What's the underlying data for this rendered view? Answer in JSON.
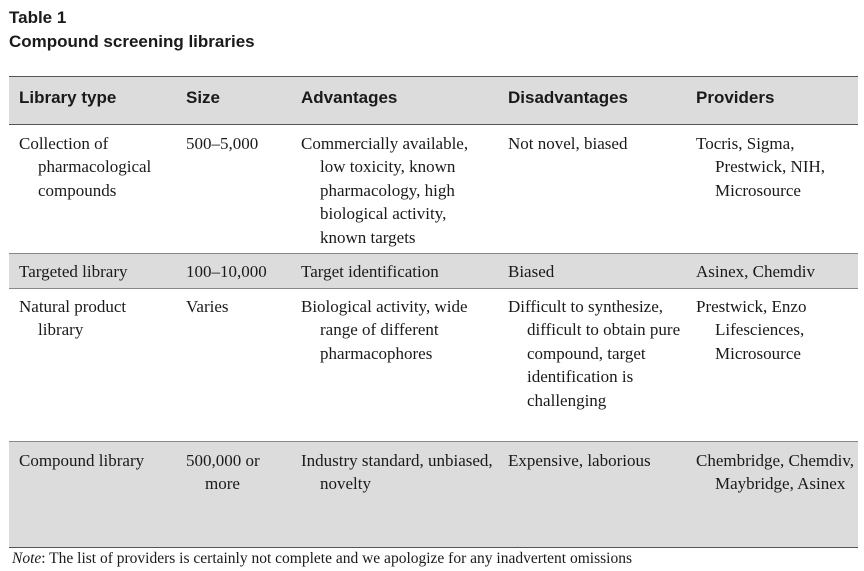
{
  "table": {
    "label": "Table 1",
    "caption": "Compound screening libraries",
    "headers": [
      "Library type",
      "Size",
      "Advantages",
      "Disadvantages",
      "Providers"
    ],
    "rows": [
      {
        "library_type": "Collection of pharmacological compounds",
        "size": "500–5,000",
        "advantages": "Commercially available, low toxicity, known pharmacology, high biological activity, known targets",
        "disadvantages": "Not novel, biased",
        "providers": "Tocris, Sigma, Prestwick, NIH, Microsource"
      },
      {
        "library_type": "Targeted library",
        "size": "100–10,000",
        "advantages": "Target identification",
        "disadvantages": "Biased",
        "providers": "Asinex, Chemdiv"
      },
      {
        "library_type": "Natural product library",
        "size": "Varies",
        "advantages": "Biological activity, wide range of different pharmacophores",
        "disadvantages": "Difficult to synthesize, difficult to obtain pure compound, target identification is challenging",
        "providers": "Prestwick, Enzo Lifesciences, Microsource"
      },
      {
        "library_type": "Compound library",
        "size": "500,000 or more",
        "advantages": "Industry standard, unbiased, novelty",
        "disadvantages": "Expensive, laborious",
        "providers": "Chembridge, Chemdiv, Maybridge, Asinex"
      }
    ],
    "note_label": "Note",
    "note_text": ": The list of providers is certainly not complete and we apologize for any inadvertent omissions"
  },
  "colors": {
    "shaded_row": "#dcdcdc",
    "text": "#1a1a1a",
    "rule": "#555555"
  }
}
